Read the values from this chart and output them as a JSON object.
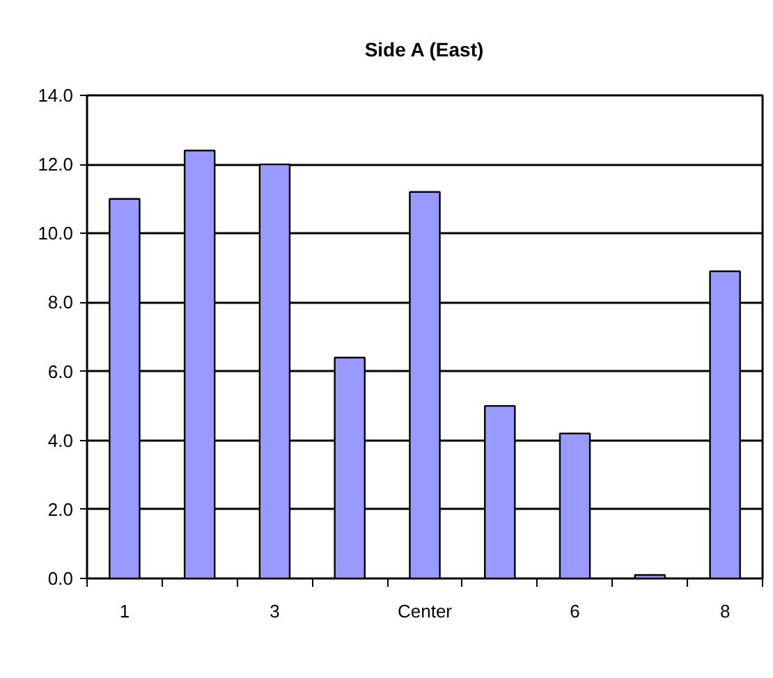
{
  "chart_data": {
    "type": "bar",
    "title": "Side A (East)",
    "categories": [
      "1",
      null,
      "3",
      null,
      "Center",
      null,
      "6",
      null,
      "8"
    ],
    "values": [
      11.0,
      12.4,
      12.0,
      6.4,
      11.2,
      5.0,
      4.2,
      0.1,
      8.9
    ],
    "color": "#9999ff",
    "ylim": [
      0,
      14
    ],
    "yticks": [
      {
        "value": 0,
        "label": "0.0"
      },
      {
        "value": 2,
        "label": "2.0"
      },
      {
        "value": 4,
        "label": "4.0"
      },
      {
        "value": 6,
        "label": "6.0"
      },
      {
        "value": 8,
        "label": "8.0"
      },
      {
        "value": 10,
        "label": "10.0"
      },
      {
        "value": 12,
        "label": "12.0"
      },
      {
        "value": 14,
        "label": "14.0"
      }
    ],
    "grid": "y"
  }
}
